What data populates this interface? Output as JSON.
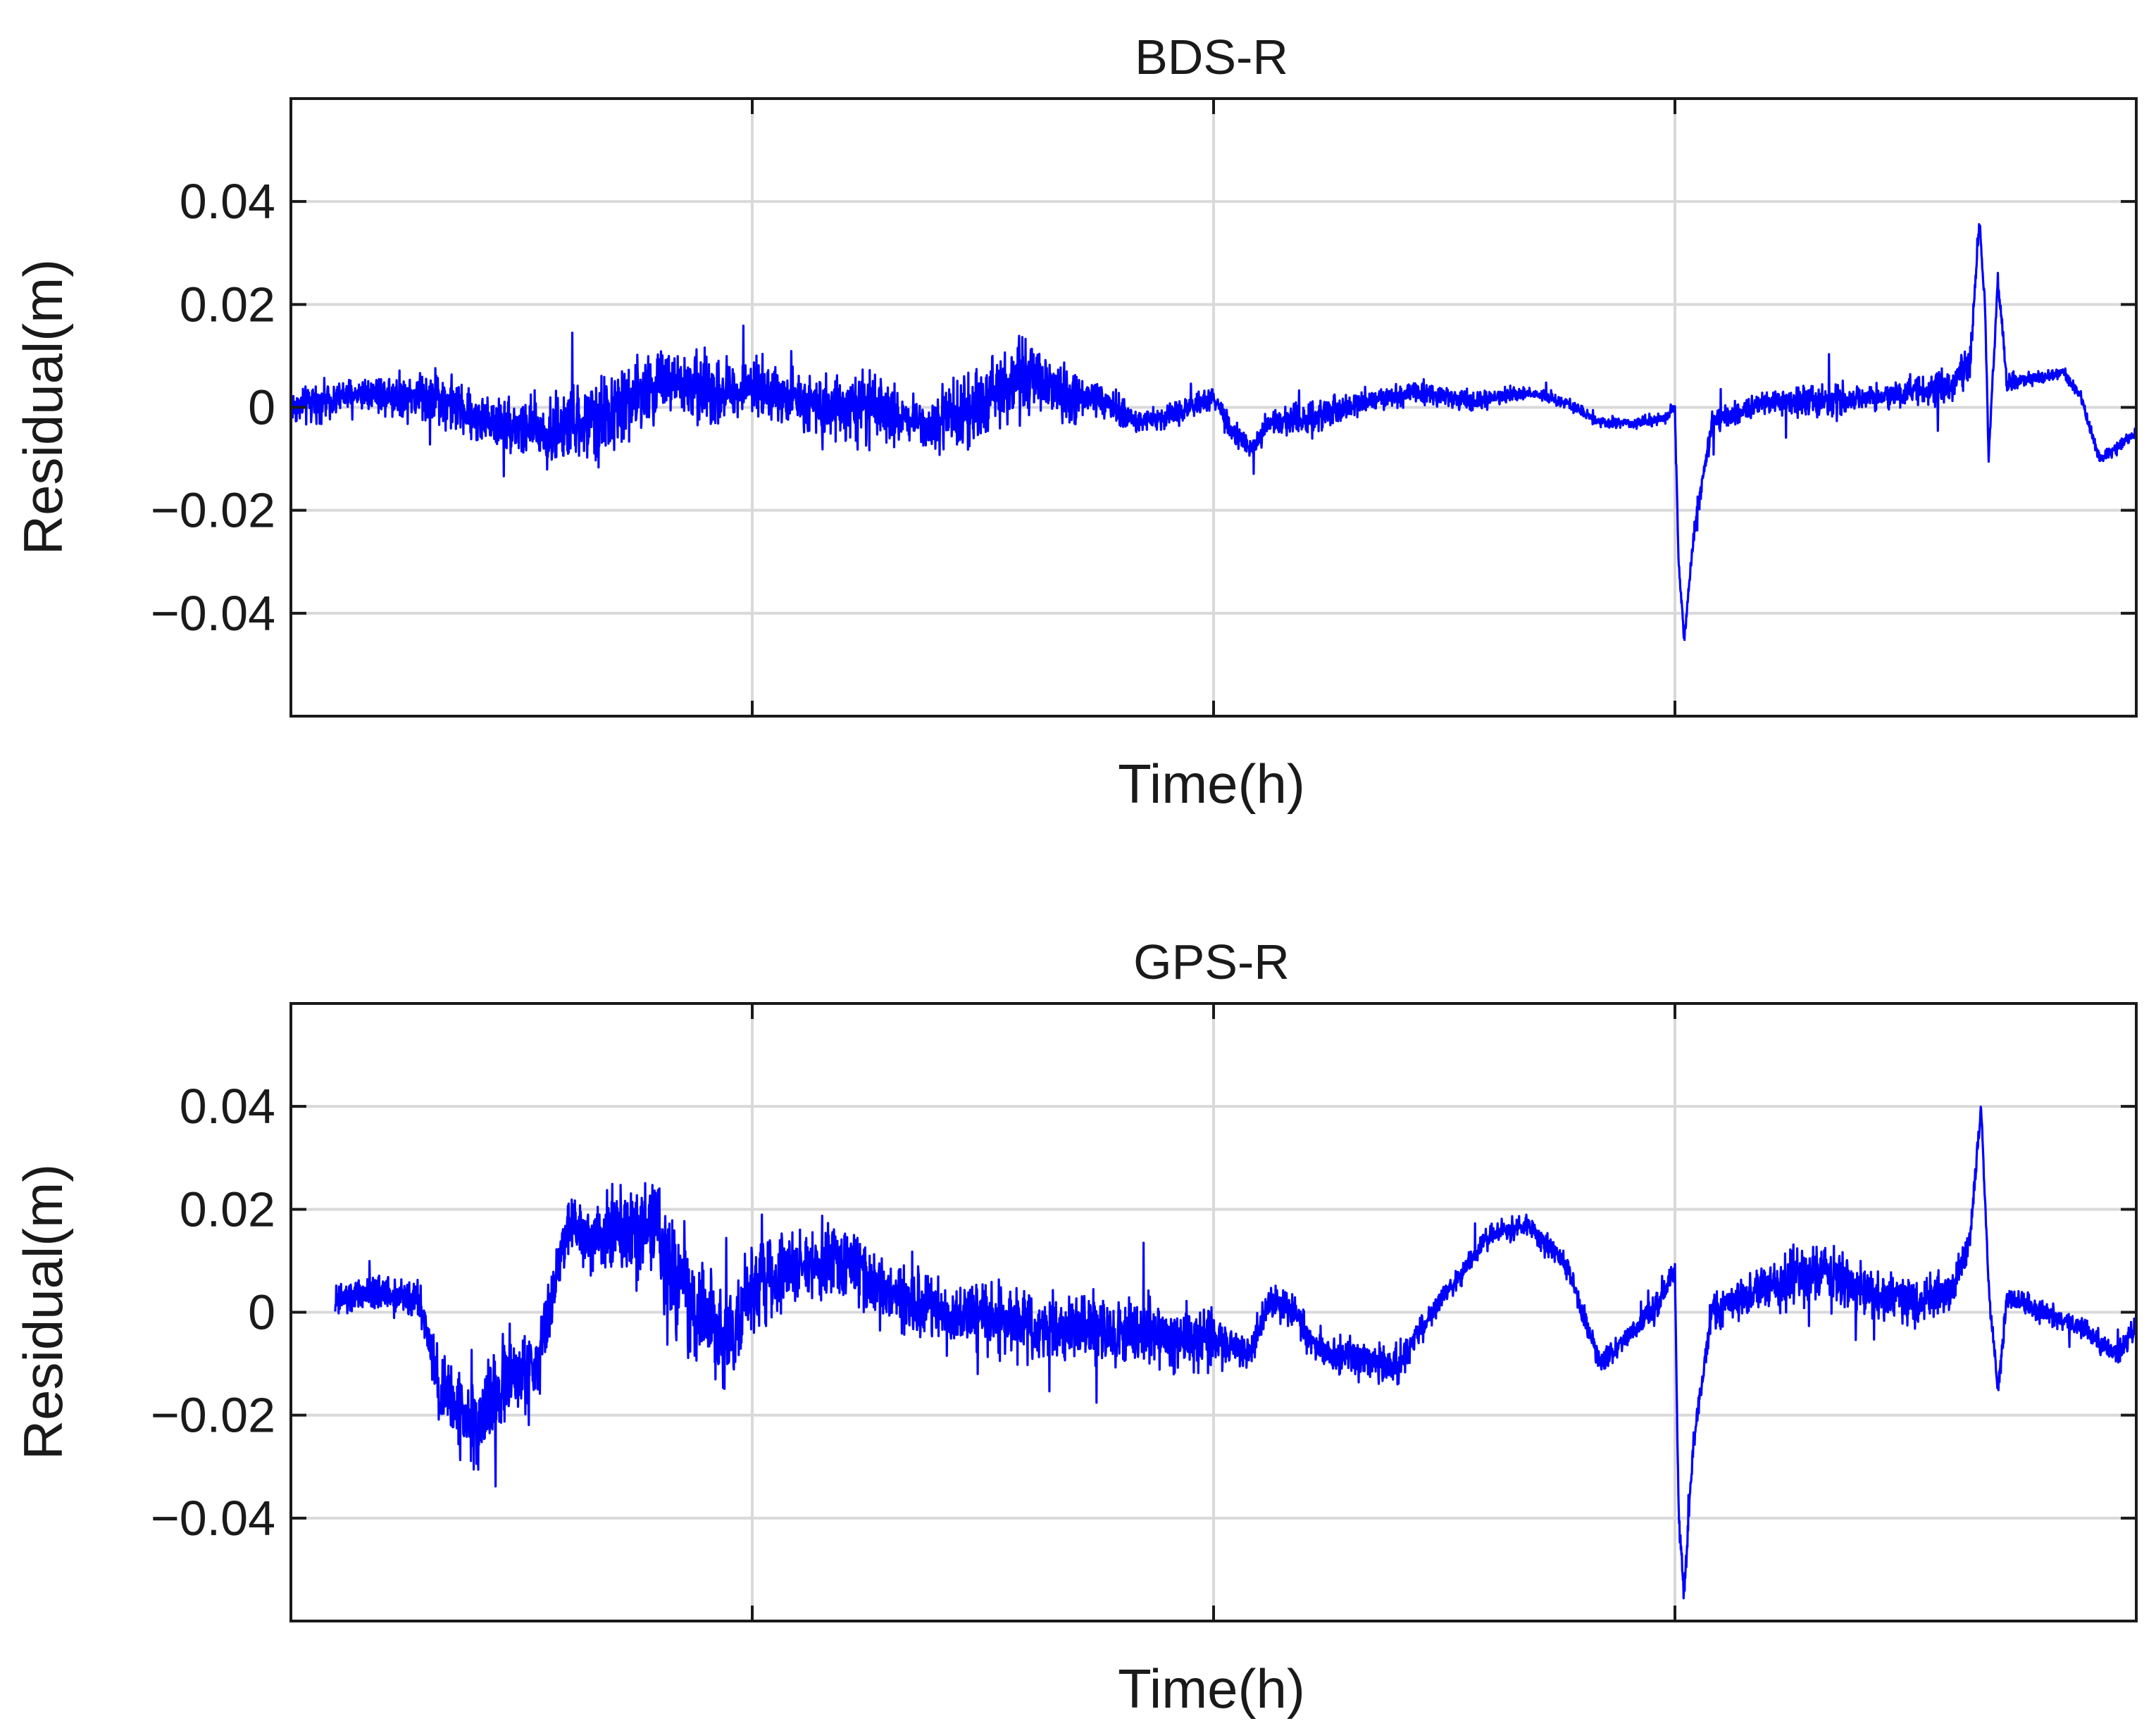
{
  "chart_data": [
    {
      "type": "line",
      "title": "BDS-R",
      "xlabel": "Time(h)",
      "ylabel": "Residual(m)",
      "ylim": [
        -0.06,
        0.06
      ],
      "xlim": [
        0,
        1
      ],
      "yticks": [
        {
          "value": 0.04,
          "label": "0.04"
        },
        {
          "value": 0.02,
          "label": "0.02"
        },
        {
          "value": 0,
          "label": "0"
        },
        {
          "value": -0.02,
          "label": "−0.02"
        },
        {
          "value": -0.04,
          "label": "−0.04"
        }
      ],
      "xgrid": [
        0.25,
        0.5,
        0.75
      ],
      "grid": true,
      "line_color": "#0000ff",
      "series": [
        {
          "x": [
            0,
            0.04,
            0.08,
            0.1,
            0.14,
            0.17,
            0.2,
            0.23,
            0.25,
            0.28,
            0.31,
            0.34,
            0.36,
            0.38,
            0.4,
            0.42,
            0.44,
            0.46,
            0.48,
            0.5,
            0.51,
            0.52,
            0.53,
            0.55,
            0.58,
            0.61,
            0.64,
            0.67,
            0.69,
            0.71,
            0.73,
            0.745,
            0.75,
            0.752,
            0.755,
            0.76,
            0.77,
            0.8,
            0.83,
            0.86,
            0.9,
            0.91,
            0.915,
            0.918,
            0.92,
            0.925,
            0.93,
            0.95,
            0.96,
            0.97,
            0.98,
            1.0
          ],
          "y": [
            0.0,
            0.003,
            0.002,
            -0.002,
            -0.005,
            -0.002,
            0.005,
            0.003,
            0.004,
            0.001,
            0.0,
            -0.003,
            -0.002,
            0.003,
            0.006,
            0.002,
            0.001,
            -0.003,
            -0.001,
            0.002,
            -0.005,
            -0.008,
            -0.003,
            -0.002,
            0.001,
            0.003,
            0.001,
            0.003,
            0.001,
            -0.003,
            -0.003,
            -0.002,
            0.0,
            -0.03,
            -0.045,
            -0.025,
            -0.003,
            0.001,
            0.001,
            0.002,
            0.004,
            0.01,
            0.036,
            0.02,
            -0.01,
            0.025,
            0.005,
            0.006,
            0.007,
            0.002,
            -0.01,
            -0.005
          ],
          "noise": [
            0.003,
            0.003,
            0.005,
            0.004,
            0.006,
            0.007,
            0.006,
            0.006,
            0.004,
            0.005,
            0.006,
            0.004,
            0.006,
            0.007,
            0.006,
            0.005,
            0.003,
            0.002,
            0.002,
            0.002,
            0.002,
            0.002,
            0.002,
            0.003,
            0.002,
            0.002,
            0.002,
            0.001,
            0.001,
            0.001,
            0.001,
            0.001,
            0.001,
            0.001,
            0.001,
            0.002,
            0.002,
            0.002,
            0.003,
            0.002,
            0.003,
            0.003,
            0.001,
            0.001,
            0.001,
            0.001,
            0.002,
            0.001,
            0.001,
            0.001,
            0.001,
            0.001
          ]
        }
      ]
    },
    {
      "type": "line",
      "title": "GPS-R",
      "xlabel": "Time(h)",
      "ylabel": "Residual(m)",
      "ylim": [
        -0.06,
        0.06
      ],
      "xlim": [
        0,
        1
      ],
      "yticks": [
        {
          "value": 0.04,
          "label": "0.04"
        },
        {
          "value": 0.02,
          "label": "0.02"
        },
        {
          "value": 0,
          "label": "0"
        },
        {
          "value": -0.02,
          "label": "−0.02"
        },
        {
          "value": -0.04,
          "label": "−0.04"
        }
      ],
      "xgrid": [
        0.25,
        0.5,
        0.75
      ],
      "grid": true,
      "line_color": "#0000ff",
      "series": [
        {
          "x": [
            0.024,
            0.05,
            0.07,
            0.08,
            0.1,
            0.12,
            0.13,
            0.14,
            0.15,
            0.16,
            0.2,
            0.2,
            0.22,
            0.24,
            0.25,
            0.27,
            0.3,
            0.33,
            0.35,
            0.38,
            0.4,
            0.5,
            0.52,
            0.53,
            0.54,
            0.56,
            0.6,
            0.62,
            0.65,
            0.67,
            0.69,
            0.71,
            0.74,
            0.75,
            0.752,
            0.755,
            0.76,
            0.77,
            0.8,
            0.83,
            0.86,
            0.88,
            0.9,
            0.91,
            0.916,
            0.92,
            0.925,
            0.93,
            0.95,
            0.97,
            0.99,
            1.0
          ],
          "y": [
            0.002,
            0.004,
            0.002,
            -0.015,
            -0.022,
            -0.012,
            -0.012,
            0.0,
            0.018,
            0.015,
            0.018,
            0.01,
            0.0,
            -0.005,
            0.005,
            0.008,
            0.01,
            0.002,
            0.0,
            -0.001,
            -0.003,
            -0.005,
            -0.008,
            0.002,
            0.001,
            -0.008,
            -0.01,
            0.001,
            0.015,
            0.017,
            0.01,
            -0.01,
            0.001,
            0.008,
            -0.04,
            -0.055,
            -0.025,
            0.0,
            0.005,
            0.008,
            0.003,
            0.002,
            0.004,
            0.015,
            0.04,
            0.005,
            -0.015,
            0.003,
            0.0,
            -0.003,
            -0.008,
            -0.003
          ],
          "noise": [
            0.003,
            0.003,
            0.003,
            0.006,
            0.008,
            0.008,
            0.007,
            0.006,
            0.005,
            0.006,
            0.008,
            0.01,
            0.009,
            0.008,
            0.008,
            0.006,
            0.006,
            0.006,
            0.006,
            0.006,
            0.006,
            0.005,
            0.003,
            0.003,
            0.003,
            0.003,
            0.003,
            0.002,
            0.002,
            0.002,
            0.002,
            0.002,
            0.002,
            0.002,
            0.002,
            0.002,
            0.002,
            0.003,
            0.004,
            0.006,
            0.004,
            0.004,
            0.003,
            0.003,
            0.001,
            0.002,
            0.002,
            0.002,
            0.002,
            0.002,
            0.002,
            0.002
          ]
        }
      ]
    }
  ]
}
